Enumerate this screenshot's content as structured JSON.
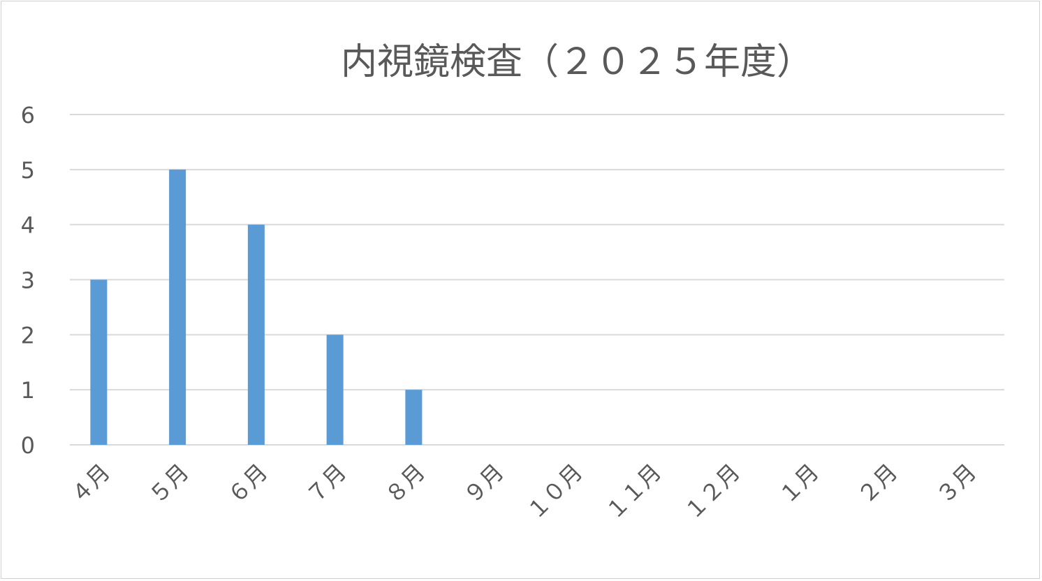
{
  "chart_data": {
    "type": "bar",
    "title": "内視鏡検査（２０２５年度）",
    "categories": [
      "４月",
      "５月",
      "６月",
      "７月",
      "８月",
      "９月",
      "１０月",
      "１１月",
      "１２月",
      "１月",
      "２月",
      "３月"
    ],
    "values": [
      3,
      5,
      4,
      2,
      1,
      0,
      0,
      0,
      0,
      0,
      0,
      0
    ],
    "yticks": [
      "0",
      "1",
      "2",
      "3",
      "4",
      "5",
      "6"
    ],
    "ylim": [
      0,
      6
    ],
    "grid": true,
    "legend": "none",
    "bar_color": "#5B9BD5",
    "grid_color": "#D9D9D9"
  }
}
